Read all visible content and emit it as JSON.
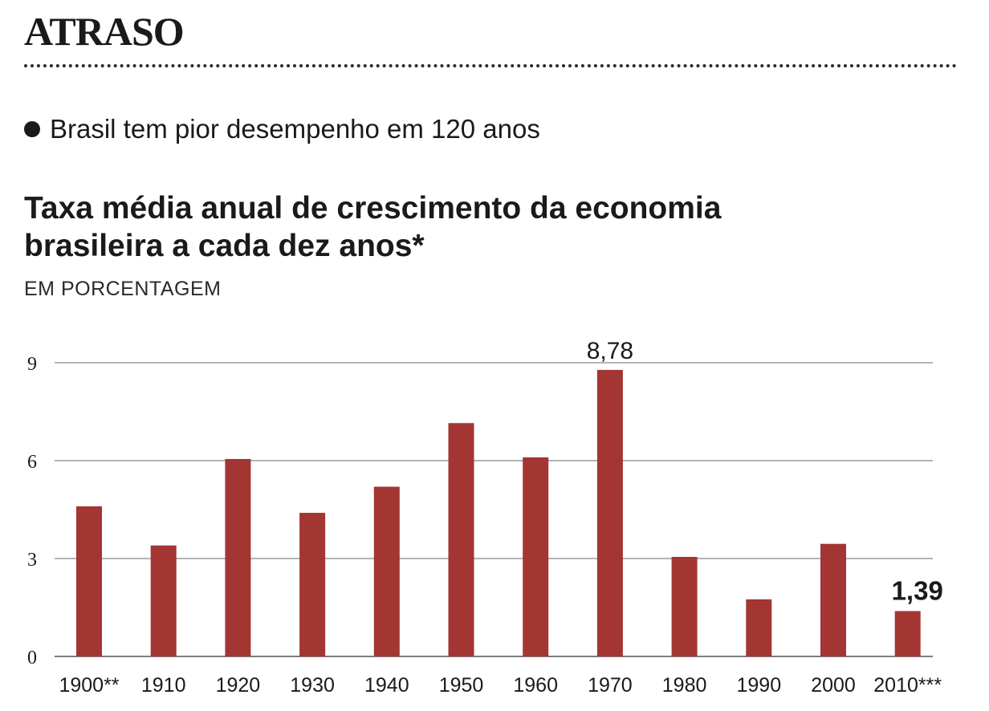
{
  "header": {
    "kicker": "ATRASO",
    "headline": "Brasil tem pior desempenho em 120 anos"
  },
  "colors": {
    "bar": "#a33533",
    "text": "#1a1a1a",
    "grid": "#888888"
  },
  "chart_data": {
    "type": "bar",
    "title": "Taxa média anual de crescimento da economia brasileira a cada dez anos*",
    "title_lines": [
      "Taxa média anual de crescimento da economia",
      "brasileira a cada dez anos*"
    ],
    "unit_label": "EM PORCENTAGEM",
    "xlabel": "",
    "ylabel": "",
    "categories": [
      "1900**",
      "1910",
      "1920",
      "1930",
      "1940",
      "1950",
      "1960",
      "1970",
      "1980",
      "1990",
      "2000",
      "2010***"
    ],
    "values": [
      4.6,
      3.4,
      6.05,
      4.4,
      5.2,
      7.15,
      6.1,
      8.78,
      3.05,
      1.75,
      3.45,
      1.39
    ],
    "ylim": [
      0,
      9
    ],
    "yticks": [
      0,
      3,
      6,
      9
    ],
    "grid": true,
    "legend": "none",
    "annotations": [
      {
        "category": "1970",
        "label": "8,78",
        "bold": false
      },
      {
        "category": "2010***",
        "label": "1,39",
        "bold": true
      }
    ]
  }
}
